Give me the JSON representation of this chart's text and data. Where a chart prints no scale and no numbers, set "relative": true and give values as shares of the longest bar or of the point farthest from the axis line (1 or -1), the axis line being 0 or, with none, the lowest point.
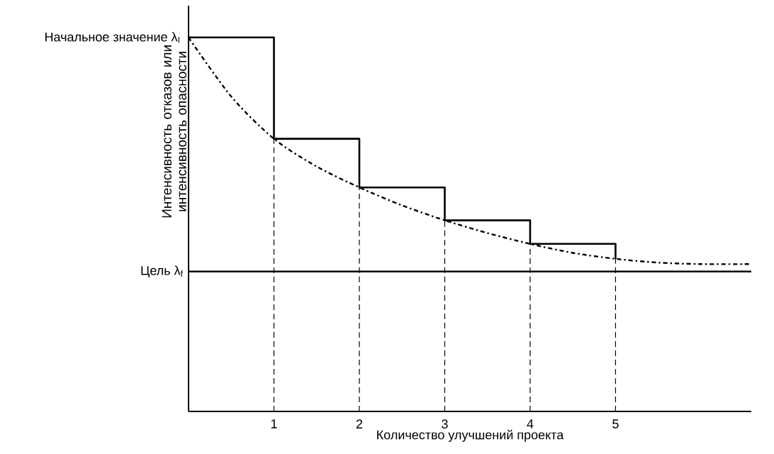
{
  "chart_data": {
    "type": "step",
    "relative": true,
    "xlabel": "Количество улучшений проекта",
    "ylabel": "Интенсивность отказов или интенсивность опасности",
    "xlim": [
      0,
      6.59
    ],
    "xticks": [
      1,
      2,
      3,
      4,
      5
    ],
    "series": [
      {
        "color": "#000000",
        "x": [
          0,
          1,
          2,
          3,
          4,
          5
        ],
        "values": [
          1.0,
          0.729,
          0.599,
          0.511,
          0.448,
          0.408
        ]
      },
      {
        "type": "line",
        "color": "#000000",
        "line_style": "dashed",
        "marker": "none",
        "x": [
          0,
          0.5,
          1,
          1.5,
          2,
          2.5,
          3,
          3.5,
          4,
          4.5,
          5,
          5.5,
          6,
          6.59
        ],
        "values": [
          1.0,
          0.842,
          0.729,
          0.655,
          0.599,
          0.551,
          0.511,
          0.477,
          0.448,
          0.424,
          0.408,
          0.398,
          0.394,
          0.394
        ]
      },
      {
        "type": "line",
        "color": "#000000",
        "line_style": "dotted",
        "marker": "none",
        "x": [
          1,
          1
        ],
        "values": [
          0,
          0.729
        ]
      },
      {
        "type": "line",
        "color": "#000000",
        "line_style": "dotted",
        "marker": "none",
        "x": [
          2,
          2
        ],
        "values": [
          0,
          0.599
        ]
      },
      {
        "type": "line",
        "color": "#000000",
        "line_style": "dotted",
        "marker": "none",
        "x": [
          3,
          3
        ],
        "values": [
          0,
          0.511
        ]
      },
      {
        "type": "line",
        "color": "#000000",
        "line_style": "dotted",
        "marker": "none",
        "x": [
          4,
          4
        ],
        "values": [
          0,
          0.448
        ]
      },
      {
        "type": "line",
        "color": "#000000",
        "line_style": "dotted",
        "marker": "none",
        "x": [
          5,
          5
        ],
        "values": [
          0,
          0.408
        ]
      }
    ],
    "ref_lines": [
      {
        "axis": "y",
        "value": 0.374,
        "label": "Цель λ$_{f}$",
        "color": "#000000",
        "line_style": "solid"
      }
    ],
    "annotations": [
      {
        "text": "Начальное значение λ$_{I}$",
        "x": 0,
        "y": 1.0
      }
    ],
    "grid": false
  }
}
